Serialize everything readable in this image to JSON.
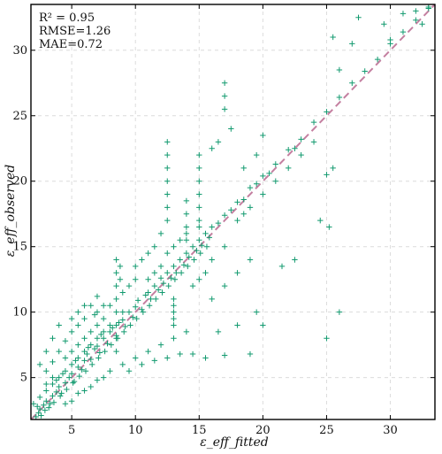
{
  "chart_data": {
    "type": "scatter",
    "xlim": [
      1.8,
      33.5
    ],
    "ylim": [
      1.8,
      33.5
    ],
    "xticks": [
      5,
      10,
      15,
      20,
      25,
      30
    ],
    "yticks": [
      5,
      10,
      15,
      20,
      25,
      30
    ],
    "grid": true,
    "marker": "+",
    "point_color": "#129a6f",
    "reference_line": {
      "style": "dashed",
      "color": "#c47fa0",
      "from": [
        1.8,
        1.8
      ],
      "to": [
        33.5,
        33.5
      ]
    },
    "stats": {
      "r2": "R² = 0.95",
      "rmse": "RMSE=1.26",
      "mae": "MAE=0.72"
    },
    "xlabel": "ε_eff_fitted",
    "ylabel": "ε_eff_observed",
    "points": [
      [
        2.5,
        2.6
      ],
      [
        2.8,
        2.9
      ],
      [
        3.0,
        3.2
      ],
      [
        3.3,
        3.0
      ],
      [
        3.5,
        3.6
      ],
      [
        3.8,
        3.9
      ],
      [
        4.0,
        4.3
      ],
      [
        4.2,
        3.8
      ],
      [
        4.5,
        4.6
      ],
      [
        4.8,
        5.0
      ],
      [
        5.0,
        5.3
      ],
      [
        5.2,
        4.7
      ],
      [
        5.5,
        5.8
      ],
      [
        5.8,
        5.6
      ],
      [
        6.0,
        6.3
      ],
      [
        6.2,
        6.8
      ],
      [
        6.5,
        6.4
      ],
      [
        6.8,
        7.2
      ],
      [
        7.0,
        7.4
      ],
      [
        7.2,
        6.9
      ],
      [
        7.5,
        8.0
      ],
      [
        7.8,
        7.6
      ],
      [
        8.0,
        8.5
      ],
      [
        8.2,
        8.8
      ],
      [
        8.5,
        8.2
      ],
      [
        8.7,
        9.2
      ],
      [
        9.0,
        9.4
      ],
      [
        9.2,
        8.9
      ],
      [
        9.5,
        10.0
      ],
      [
        9.8,
        9.6
      ],
      [
        10.0,
        10.4
      ],
      [
        10.2,
        10.9
      ],
      [
        10.5,
        10.2
      ],
      [
        10.8,
        11.3
      ],
      [
        11.0,
        11.5
      ],
      [
        11.2,
        11.0
      ],
      [
        11.5,
        12.0
      ],
      [
        11.8,
        11.7
      ],
      [
        12.0,
        12.6
      ],
      [
        12.2,
        12.2
      ],
      [
        12.5,
        13.0
      ],
      [
        12.8,
        12.6
      ],
      [
        13.0,
        13.5
      ],
      [
        13.2,
        13.0
      ],
      [
        13.5,
        14.0
      ],
      [
        13.8,
        13.6
      ],
      [
        14.0,
        14.5
      ],
      [
        14.2,
        14.2
      ],
      [
        14.5,
        15.0
      ],
      [
        14.8,
        14.7
      ],
      [
        15.0,
        15.5
      ],
      [
        15.2,
        15.1
      ],
      [
        15.5,
        16.0
      ],
      [
        15.8,
        15.7
      ],
      [
        16.0,
        16.5
      ],
      [
        16.5,
        16.8
      ],
      [
        17.0,
        17.4
      ],
      [
        17.5,
        17.8
      ],
      [
        18.0,
        18.4
      ],
      [
        18.5,
        18.6
      ],
      [
        19.0,
        19.5
      ],
      [
        19.5,
        19.8
      ],
      [
        20.0,
        20.4
      ],
      [
        20.5,
        20.6
      ],
      [
        21.0,
        21.3
      ],
      [
        22.0,
        22.4
      ],
      [
        23.0,
        23.2
      ],
      [
        24.0,
        24.5
      ],
      [
        25.0,
        25.3
      ],
      [
        26.0,
        26.4
      ],
      [
        27.0,
        27.5
      ],
      [
        28.0,
        28.4
      ],
      [
        29.0,
        29.3
      ],
      [
        30.0,
        30.5
      ],
      [
        31.0,
        31.4
      ],
      [
        32.0,
        32.3
      ],
      [
        33.0,
        33.2
      ],
      [
        3.0,
        5.5
      ],
      [
        3.5,
        6.2
      ],
      [
        4.0,
        7.0
      ],
      [
        4.5,
        7.8
      ],
      [
        5.0,
        8.5
      ],
      [
        5.5,
        9.0
      ],
      [
        6.0,
        9.5
      ],
      [
        6.5,
        10.5
      ],
      [
        7.0,
        11.2
      ],
      [
        8.5,
        14.0
      ],
      [
        8.5,
        13.0
      ],
      [
        8.5,
        12.0
      ],
      [
        8.5,
        11.0
      ],
      [
        8.5,
        10.0
      ],
      [
        8.5,
        9.0
      ],
      [
        8.5,
        8.0
      ],
      [
        8.5,
        7.0
      ],
      [
        10.0,
        13.5
      ],
      [
        10.5,
        14.0
      ],
      [
        11.0,
        14.5
      ],
      [
        11.5,
        15.0
      ],
      [
        12.0,
        16.0
      ],
      [
        12.5,
        17.0
      ],
      [
        12.5,
        18.0
      ],
      [
        12.5,
        19.0
      ],
      [
        12.5,
        20.0
      ],
      [
        12.5,
        21.0
      ],
      [
        12.5,
        22.0
      ],
      [
        12.5,
        23.0
      ],
      [
        15.0,
        22.0
      ],
      [
        15.0,
        21.0
      ],
      [
        15.0,
        20.0
      ],
      [
        15.0,
        19.0
      ],
      [
        15.0,
        18.0
      ],
      [
        15.0,
        17.0
      ],
      [
        15.0,
        16.5
      ],
      [
        14.0,
        15.5
      ],
      [
        14.0,
        16.5
      ],
      [
        14.0,
        17.5
      ],
      [
        14.0,
        18.5
      ],
      [
        17.0,
        26.5
      ],
      [
        17.0,
        27.5
      ],
      [
        17.0,
        25.5
      ],
      [
        17.5,
        24.0
      ],
      [
        16.5,
        23.0
      ],
      [
        16.0,
        22.5
      ],
      [
        18.5,
        21.0
      ],
      [
        19.5,
        22.0
      ],
      [
        20.0,
        23.5
      ],
      [
        4.5,
        3.0
      ],
      [
        5.0,
        3.2
      ],
      [
        5.5,
        3.8
      ],
      [
        6.0,
        4.0
      ],
      [
        6.5,
        4.3
      ],
      [
        7.0,
        4.8
      ],
      [
        7.5,
        5.0
      ],
      [
        8.0,
        5.5
      ],
      [
        9.0,
        6.0
      ],
      [
        10.0,
        6.5
      ],
      [
        11.0,
        7.0
      ],
      [
        12.0,
        7.5
      ],
      [
        13.0,
        8.0
      ],
      [
        14.0,
        8.5
      ],
      [
        12.5,
        6.5
      ],
      [
        13.5,
        6.8
      ],
      [
        14.5,
        6.8
      ],
      [
        15.5,
        6.5
      ],
      [
        17.0,
        6.7
      ],
      [
        19.0,
        6.8
      ],
      [
        10.5,
        6.0
      ],
      [
        11.5,
        6.3
      ],
      [
        9.5,
        5.5
      ],
      [
        16.0,
        11.0
      ],
      [
        17.0,
        12.0
      ],
      [
        18.0,
        13.0
      ],
      [
        19.0,
        14.0
      ],
      [
        16.5,
        8.5
      ],
      [
        18.0,
        9.0
      ],
      [
        19.5,
        10.0
      ],
      [
        20.0,
        9.0
      ],
      [
        21.5,
        13.5
      ],
      [
        22.5,
        14.0
      ],
      [
        22.5,
        22.5
      ],
      [
        25.0,
        20.5
      ],
      [
        25.5,
        21.0
      ],
      [
        25.0,
        8.0
      ],
      [
        26.0,
        10.0
      ],
      [
        24.5,
        17.0
      ],
      [
        25.2,
        16.5
      ],
      [
        27.0,
        30.5
      ],
      [
        26.0,
        28.5
      ],
      [
        25.5,
        31.0
      ],
      [
        27.5,
        32.5
      ],
      [
        29.5,
        32.0
      ],
      [
        31.0,
        32.8
      ],
      [
        32.0,
        33.0
      ],
      [
        33.0,
        33.3
      ],
      [
        32.5,
        32.0
      ],
      [
        30.0,
        30.8
      ],
      [
        2.2,
        2.0
      ],
      [
        2.4,
        2.3
      ],
      [
        2.6,
        2.1
      ],
      [
        2.9,
        2.5
      ],
      [
        3.2,
        2.7
      ],
      [
        3.6,
        3.1
      ],
      [
        4.1,
        3.6
      ],
      [
        4.6,
        4.1
      ],
      [
        5.1,
        4.6
      ],
      [
        5.6,
        5.1
      ],
      [
        6.1,
        5.5
      ],
      [
        6.6,
        6.0
      ],
      [
        7.1,
        6.5
      ],
      [
        7.6,
        7.0
      ],
      [
        8.1,
        7.5
      ],
      [
        8.6,
        8.0
      ],
      [
        9.1,
        8.5
      ],
      [
        9.6,
        9.0
      ],
      [
        10.1,
        9.5
      ],
      [
        10.6,
        10.0
      ],
      [
        11.1,
        10.5
      ],
      [
        11.6,
        11.0
      ],
      [
        12.1,
        11.5
      ],
      [
        12.6,
        12.0
      ],
      [
        13.1,
        12.5
      ],
      [
        13.6,
        13.0
      ],
      [
        14.1,
        13.5
      ],
      [
        14.6,
        14.0
      ],
      [
        15.1,
        14.5
      ],
      [
        15.6,
        15.0
      ],
      [
        4.0,
        5.0
      ],
      [
        4.5,
        5.5
      ],
      [
        5.0,
        6.0
      ],
      [
        5.5,
        6.5
      ],
      [
        6.0,
        7.0
      ],
      [
        6.5,
        7.5
      ],
      [
        7.0,
        8.0
      ],
      [
        7.5,
        8.5
      ],
      [
        8.0,
        9.0
      ],
      [
        9.0,
        10.0
      ],
      [
        3.0,
        4.0
      ],
      [
        3.5,
        4.5
      ],
      [
        2.5,
        3.5
      ],
      [
        2.0,
        3.0
      ],
      [
        2.3,
        2.8
      ],
      [
        3.8,
        4.8
      ],
      [
        4.3,
        5.3
      ],
      [
        5.3,
        6.3
      ],
      [
        6.3,
        7.3
      ],
      [
        7.3,
        8.3
      ],
      [
        11.0,
        12.5
      ],
      [
        11.5,
        13.0
      ],
      [
        12.0,
        13.5
      ],
      [
        12.5,
        14.5
      ],
      [
        13.0,
        15.0
      ],
      [
        13.5,
        15.5
      ],
      [
        14.0,
        16.0
      ],
      [
        9.0,
        11.5
      ],
      [
        9.5,
        12.0
      ],
      [
        10.0,
        12.5
      ],
      [
        6.0,
        8.0
      ],
      [
        6.5,
        8.5
      ],
      [
        7.0,
        9.0
      ],
      [
        7.5,
        9.5
      ],
      [
        8.0,
        10.5
      ],
      [
        5.0,
        7.0
      ],
      [
        5.5,
        7.5
      ],
      [
        4.5,
        6.5
      ],
      [
        3.5,
        5.0
      ],
      [
        3.0,
        4.5
      ],
      [
        13.0,
        10.0
      ],
      [
        13.0,
        9.5
      ],
      [
        13.0,
        9.0
      ],
      [
        13.0,
        10.5
      ],
      [
        13.0,
        11.0
      ],
      [
        14.5,
        12.0
      ],
      [
        15.0,
        12.5
      ],
      [
        15.5,
        13.0
      ],
      [
        16.0,
        14.0
      ],
      [
        17.0,
        15.0
      ],
      [
        18.0,
        17.0
      ],
      [
        18.5,
        17.5
      ],
      [
        19.0,
        18.0
      ],
      [
        20.0,
        19.0
      ],
      [
        21.0,
        20.0
      ],
      [
        22.0,
        21.0
      ],
      [
        23.0,
        22.0
      ],
      [
        24.0,
        23.0
      ],
      [
        8.8,
        13.5
      ],
      [
        8.8,
        12.5
      ],
      [
        7.5,
        10.5
      ],
      [
        7.0,
        10.0
      ],
      [
        6.8,
        9.8
      ],
      [
        6.0,
        10.5
      ],
      [
        5.5,
        10.0
      ],
      [
        5.0,
        9.5
      ],
      [
        4.0,
        9.0
      ],
      [
        3.5,
        8.0
      ],
      [
        3.0,
        7.0
      ],
      [
        2.5,
        6.0
      ]
    ]
  }
}
